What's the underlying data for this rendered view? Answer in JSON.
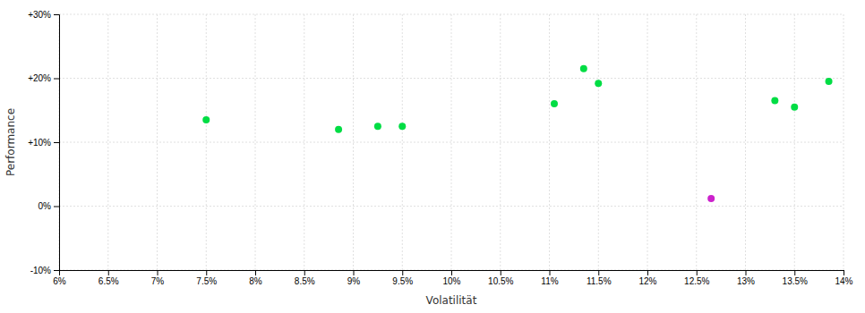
{
  "chart_data": {
    "type": "scatter",
    "xlabel": "Volatilität",
    "ylabel": "Performance",
    "series": [
      {
        "color": "#00dd44",
        "x": [
          7.5,
          8.85,
          9.25,
          9.5,
          11.05,
          11.35,
          11.5,
          13.3,
          13.5,
          13.85
        ],
        "values": [
          13.5,
          12.0,
          12.5,
          12.5,
          16.0,
          21.5,
          19.2,
          16.5,
          15.5,
          19.5
        ]
      },
      {
        "color": "#cc22cc",
        "x": [
          12.65
        ],
        "values": [
          1.2
        ]
      }
    ],
    "xlim": [
      6.0,
      14.0
    ],
    "xticks": [
      {
        "value": 6.0,
        "label": "6%"
      },
      {
        "value": 6.5,
        "label": "6.5%"
      },
      {
        "value": 7.0,
        "label": "7%"
      },
      {
        "value": 7.5,
        "label": "7.5%"
      },
      {
        "value": 8.0,
        "label": "8%"
      },
      {
        "value": 8.5,
        "label": "8.5%"
      },
      {
        "value": 9.0,
        "label": "9%"
      },
      {
        "value": 9.5,
        "label": "9.5%"
      },
      {
        "value": 10.0,
        "label": "10%"
      },
      {
        "value": 10.5,
        "label": "10.5%"
      },
      {
        "value": 11.0,
        "label": "11%"
      },
      {
        "value": 11.5,
        "label": "11.5%"
      },
      {
        "value": 12.0,
        "label": "12%"
      },
      {
        "value": 12.5,
        "label": "12.5%"
      },
      {
        "value": 13.0,
        "label": "13%"
      },
      {
        "value": 13.5,
        "label": "13.5%"
      },
      {
        "value": 14.0,
        "label": "14%"
      }
    ],
    "ylim": [
      -10.0,
      30.0
    ],
    "yticks": [
      {
        "value": -10,
        "label": "-10%"
      },
      {
        "value": 0,
        "label": "0%"
      },
      {
        "value": 10,
        "label": "+10%"
      },
      {
        "value": 20,
        "label": "+20%"
      },
      {
        "value": 30,
        "label": "+30%"
      }
    ],
    "grid": true
  }
}
